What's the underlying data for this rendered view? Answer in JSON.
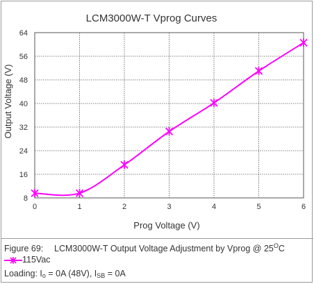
{
  "chart_data": {
    "type": "line",
    "title": "LCM3000W-T  Vprog Curves",
    "xlabel": "Prog Voltage (V)",
    "ylabel": "Output Voltage (V)",
    "xlim": [
      0,
      6
    ],
    "ylim": [
      8,
      64
    ],
    "x_ticks": [
      "0",
      "1",
      "2",
      "3",
      "4",
      "5",
      "6"
    ],
    "y_ticks": [
      "8",
      "16",
      "24",
      "32",
      "40",
      "48",
      "56",
      "64"
    ],
    "grid": true,
    "series": [
      {
        "name": "115Vac",
        "color": "#ff00ff",
        "marker": "star-x",
        "x": [
          0,
          1,
          2,
          3,
          4,
          5,
          6
        ],
        "y": [
          9.6,
          9.6,
          19.2,
          30.5,
          40.2,
          51.0,
          60.6
        ]
      }
    ]
  },
  "caption": {
    "figure_label": "Figure 69:",
    "figure_text": "LCM3000W-T Output Voltage Adjustment by Vprog @ 25",
    "degree_super": "O",
    "degree_unit": "C",
    "legend_label": "115Vac",
    "cond_prefix": "Loading:  I",
    "cond_sub1": "o",
    "cond_mid": " = 0A (48V), I",
    "cond_sub2": "SB",
    "cond_end": " = 0A"
  }
}
